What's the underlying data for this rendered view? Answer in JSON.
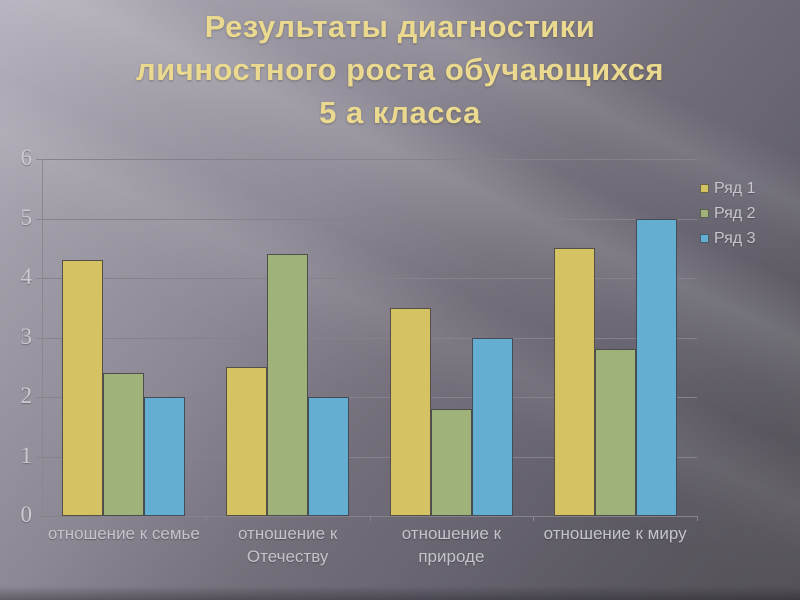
{
  "slide": {
    "title": "Результаты диагностики\nличностного роста обучающихся\n5 а класса",
    "title_color": "#ead98e",
    "background_light": "#b4b0bc",
    "background_dark": "#545158"
  },
  "chart_data": {
    "type": "bar",
    "title": "",
    "xlabel": "",
    "ylabel": "",
    "categories": [
      "отношение к семье",
      "отношение к Отечеству",
      "отношение к природе",
      "отношение к миру"
    ],
    "series": [
      {
        "name": "Ряд 1",
        "color": "#d5c363",
        "values": [
          4.3,
          2.5,
          3.5,
          4.5
        ]
      },
      {
        "name": "Ряд 2",
        "color": "#9eb279",
        "values": [
          2.4,
          4.4,
          1.8,
          2.8
        ]
      },
      {
        "name": "Ряд 3",
        "color": "#64afd1",
        "values": [
          2.0,
          2.0,
          3.0,
          5.0
        ]
      }
    ],
    "ylim": [
      0,
      6
    ],
    "ytick_step": 1,
    "grid": true,
    "legend_position": "right",
    "gridline_color": "#85828c",
    "tick_label_color": "#cdcad3",
    "category_label_color": "#c5c3cb"
  }
}
